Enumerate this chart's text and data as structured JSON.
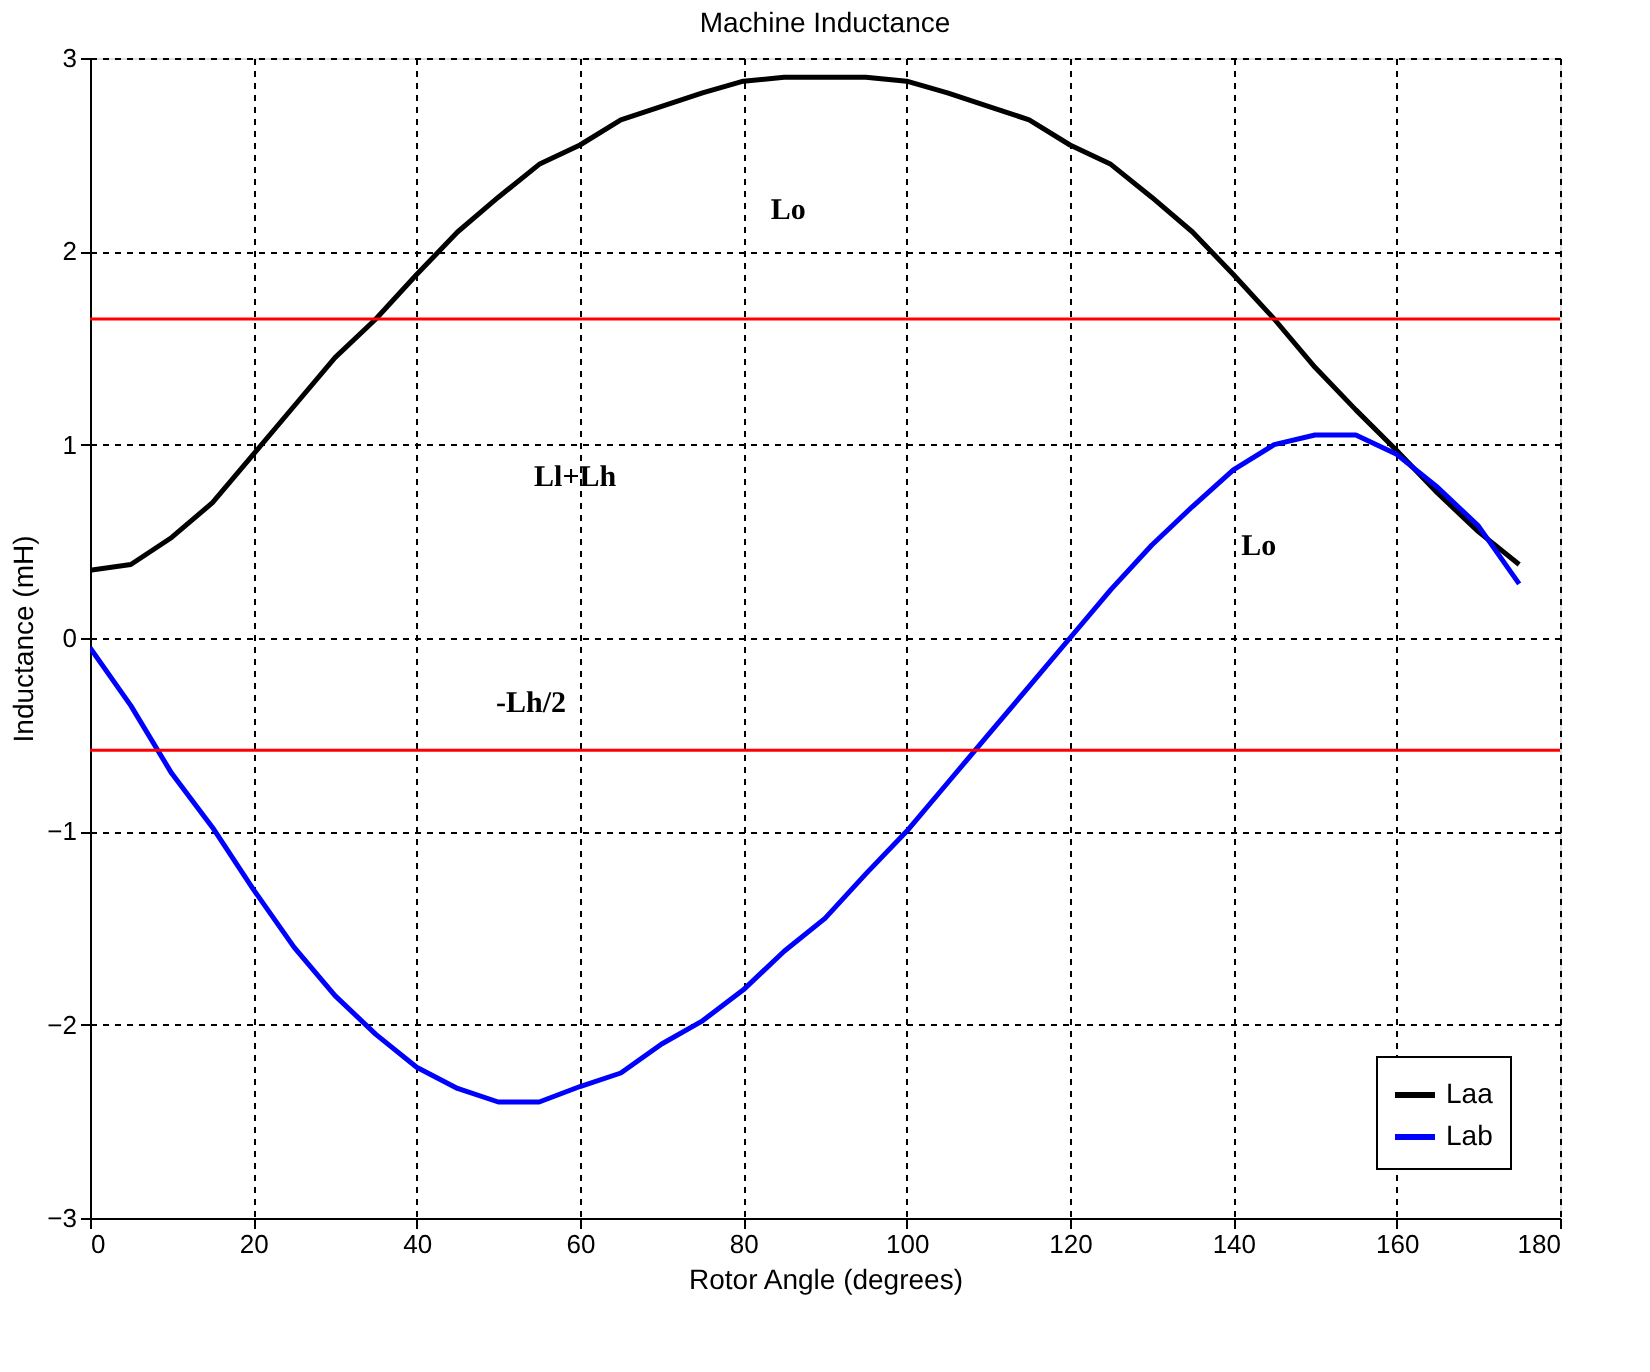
{
  "chart_data": {
    "type": "line",
    "title": "Machine Inductance",
    "xlabel": "Rotor Angle (degrees)",
    "ylabel": "Inductance (mH)",
    "x": [
      0,
      5,
      10,
      15,
      20,
      25,
      30,
      35,
      40,
      45,
      50,
      55,
      60,
      65,
      70,
      75,
      80,
      85,
      90,
      95,
      100,
      105,
      110,
      115,
      120,
      125,
      130,
      135,
      140,
      145,
      150,
      155,
      160,
      165,
      170,
      175
    ],
    "series": [
      {
        "name": "Laa",
        "color": "#000000",
        "values": [
          0.35,
          0.38,
          0.52,
          0.7,
          0.95,
          1.2,
          1.45,
          1.65,
          1.88,
          2.1,
          2.28,
          2.45,
          2.55,
          2.68,
          2.75,
          2.82,
          2.88,
          2.9,
          2.9,
          2.9,
          2.88,
          2.82,
          2.75,
          2.68,
          2.55,
          2.45,
          2.28,
          2.1,
          1.88,
          1.65,
          1.4,
          1.18,
          0.97,
          0.75,
          0.55,
          0.38
        ]
      },
      {
        "name": "Lab",
        "color": "#0000ff",
        "values": [
          -0.05,
          -0.35,
          -0.7,
          -0.98,
          -1.3,
          -1.6,
          -1.85,
          -2.05,
          -2.22,
          -2.33,
          -2.4,
          -2.4,
          -2.32,
          -2.25,
          -2.1,
          -1.98,
          -1.82,
          -1.62,
          -1.45,
          -1.22,
          -1.0,
          -0.75,
          -0.5,
          -0.25,
          0.0,
          0.25,
          0.48,
          0.68,
          0.87,
          1.0,
          1.05,
          1.05,
          0.95,
          0.78,
          0.58,
          0.28
        ]
      }
    ],
    "xlim": [
      0,
      180
    ],
    "xticks": [
      0,
      20,
      40,
      60,
      80,
      100,
      120,
      140,
      160,
      180
    ],
    "ylim": [
      -3,
      3
    ],
    "yticks": [
      -3,
      -2,
      -1,
      0,
      1,
      2,
      3
    ],
    "ref_lines": [
      {
        "axis": "y",
        "value": 1.65,
        "color": "#ff0000"
      },
      {
        "axis": "y",
        "value": -0.58,
        "color": "#ff0000"
      }
    ],
    "annotations": [
      "Lo",
      "Ll+Lh",
      "-Lh/2",
      "Lo"
    ],
    "grid": true,
    "legend": "bottom right",
    "line_style": "solid",
    "marker": "none"
  }
}
